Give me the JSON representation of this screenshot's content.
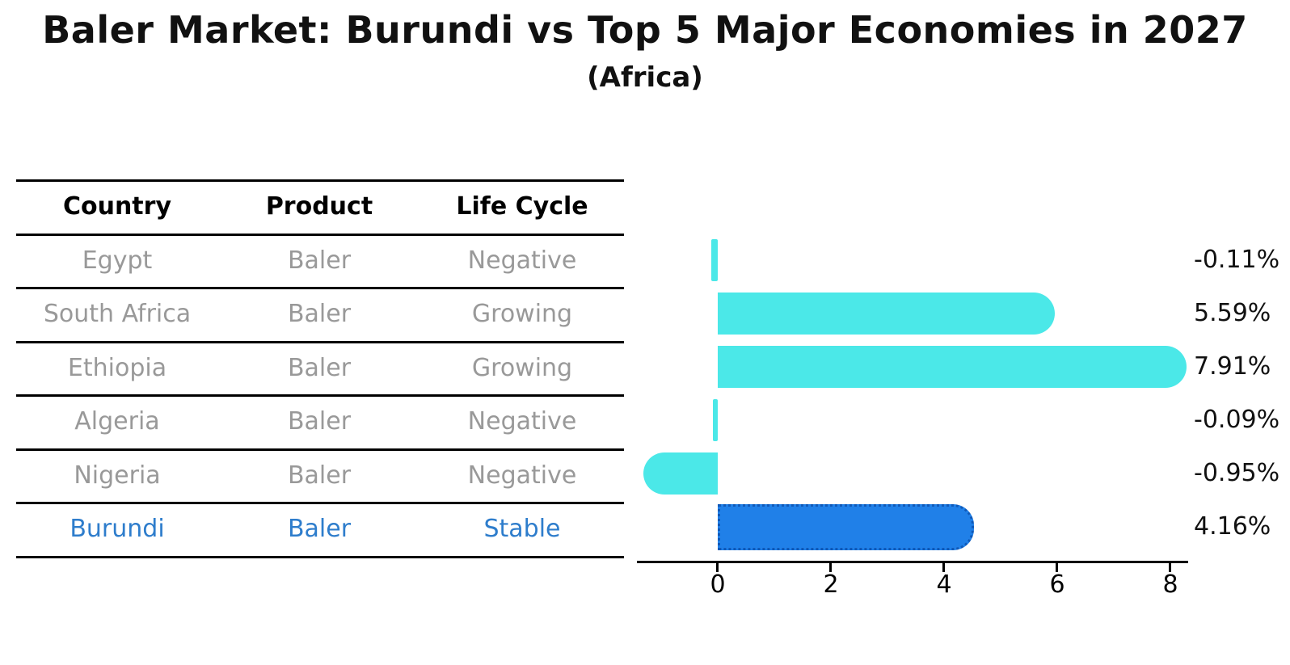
{
  "title": "Baler Market: Burundi vs Top 5 Major Economies in 2027",
  "subtitle": "(Africa)",
  "colors": {
    "bar": "#4BE8E8",
    "highlight_bar": "#2080E8",
    "highlight_border": "#1059B8",
    "highlight_text": "#2E7DCC",
    "table_text": "#999999",
    "axis": "#000000"
  },
  "table": {
    "headers": [
      "Country",
      "Product",
      "Life Cycle"
    ],
    "rows": [
      {
        "country": "Egypt",
        "product": "Baler",
        "life_cycle": "Negative",
        "highlight": false
      },
      {
        "country": "South Africa",
        "product": "Baler",
        "life_cycle": "Growing",
        "highlight": false
      },
      {
        "country": "Ethiopia",
        "product": "Baler",
        "life_cycle": "Growing",
        "highlight": false
      },
      {
        "country": "Algeria",
        "product": "Baler",
        "life_cycle": "Negative",
        "highlight": false
      },
      {
        "country": "Nigeria",
        "product": "Baler",
        "life_cycle": "Negative",
        "highlight": false
      },
      {
        "country": "Burundi",
        "product": "Baler",
        "life_cycle": "Stable",
        "highlight": true
      }
    ]
  },
  "chart_data": {
    "type": "bar",
    "orientation": "horizontal",
    "categories": [
      "Egypt",
      "South Africa",
      "Ethiopia",
      "Algeria",
      "Nigeria",
      "Burundi"
    ],
    "values": [
      -0.11,
      5.59,
      7.91,
      -0.09,
      -0.95,
      4.16
    ],
    "value_labels": [
      "-0.11%",
      "5.59%",
      "7.91%",
      "-0.09%",
      "-0.95%",
      "4.16%"
    ],
    "x_ticks": [
      "0",
      "2",
      "4",
      "6",
      "8"
    ],
    "xlim": [
      -1.4,
      8.3
    ],
    "highlight_category": "Burundi",
    "title": "Baler Market: Burundi vs Top 5 Major Economies in 2027",
    "subtitle": "(Africa)",
    "xlabel": "",
    "ylabel": "",
    "grid": false,
    "legend": false
  }
}
